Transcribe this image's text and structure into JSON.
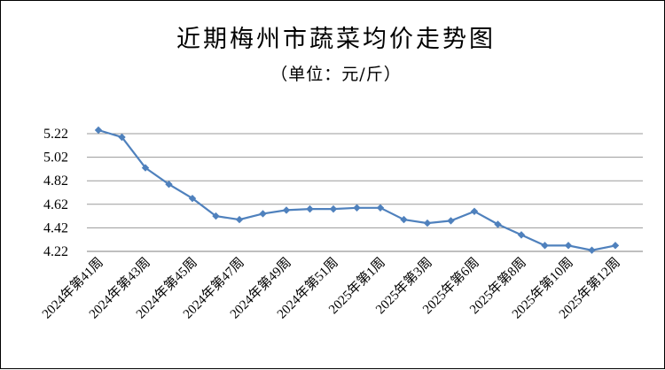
{
  "chart_data": {
    "type": "line",
    "title": "近期梅州市蔬菜均价走势图",
    "subtitle": "（单位：元/斤）",
    "y_tick_labels": [
      "5.22",
      "5.02",
      "4.82",
      "4.62",
      "4.42",
      "4.22"
    ],
    "ylim": [
      4.22,
      5.22
    ],
    "categories": [
      "2024年第41周",
      "2024年第42周",
      "2024年第43周",
      "2024年第44周",
      "2024年第45周",
      "2024年第46周",
      "2024年第47周",
      "2024年第48周",
      "2024年第49周",
      "2024年第50周",
      "2024年第51周",
      "2024年第52周",
      "2025年第1周",
      "2025年第2周",
      "2025年第3周",
      "2025年第4周",
      "2025年第6周",
      "2025年第7周",
      "2025年第8周",
      "2025年第9周",
      "2025年第10周",
      "2025年第11周",
      "2025年第12周"
    ],
    "x_tick_labels": [
      "2024年第41周",
      "2024年第43周",
      "2024年第45周",
      "2024年第47周",
      "2024年第49周",
      "2024年第51周",
      "2025年第1周",
      "2025年第3周",
      "2025年第6周",
      "2025年第8周",
      "2025年第10周",
      "2025年第12周"
    ],
    "series": [
      {
        "values": [
          5.25,
          5.19,
          4.93,
          4.79,
          4.67,
          4.52,
          4.49,
          4.54,
          4.57,
          4.58,
          4.58,
          4.59,
          4.59,
          4.49,
          4.46,
          4.48,
          4.56,
          4.45,
          4.36,
          4.27,
          4.27,
          4.23,
          4.27
        ],
        "color": "#4f81bd"
      }
    ],
    "grid": true,
    "legend": "none"
  }
}
